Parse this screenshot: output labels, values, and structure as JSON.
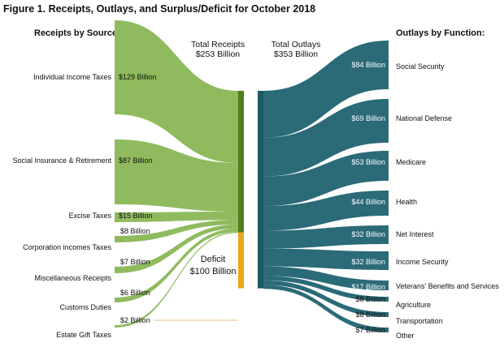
{
  "figure": {
    "title": "Figure 1. Receipts, Outlays, and Surplus/Deficit for October 2018",
    "receipts_heading": "Receipts by Source:",
    "outlays_heading": "Outlays by Function:",
    "total_receipts_label": "Total Receipts",
    "total_receipts_value": "$253 Billion",
    "total_outlays_label": "Total Outlays",
    "total_outlays_value": "$353 Billion",
    "deficit_label": "Deficit",
    "deficit_value": "$100 Billion"
  },
  "colors": {
    "receipts_band": "#8fbb5e",
    "receipts_bar": "#4e7f1c",
    "deficit_bar": "#e8a81a",
    "outlays_band": "#2b6b78",
    "outlays_bar": "#1e5a66",
    "deficit_line": "#e8c27a"
  },
  "chart_data": {
    "type": "sankey",
    "units": "Billion dollars",
    "receipts": [
      {
        "name": "Individual Income Taxes",
        "value": 129,
        "label": "$129 Billion"
      },
      {
        "name": "Social Insurance & Retirement",
        "value": 87,
        "label": "$87 Billion"
      },
      {
        "name": "Excise Taxes",
        "value": 15,
        "label": "$15 Billion"
      },
      {
        "name": "Corporation incomes Taxes",
        "value": 8,
        "label": "$8 Billion"
      },
      {
        "name": "Miscellaneous Receipts",
        "value": 7,
        "label": "$7 Billion"
      },
      {
        "name": "Customs Duties",
        "value": 6,
        "label": "$6 Billion"
      },
      {
        "name": "Estate Gift Taxes",
        "value": 2,
        "label": "$2 Billion"
      }
    ],
    "outlays": [
      {
        "name": "Social Security",
        "value": 84,
        "label": "$84 Billion"
      },
      {
        "name": "National Defense",
        "value": 69,
        "label": "$69 Billion"
      },
      {
        "name": "Medicare",
        "value": 53,
        "label": "$53 Billion"
      },
      {
        "name": "Health",
        "value": 44,
        "label": "$44 Billion"
      },
      {
        "name": "Net Interest",
        "value": 32,
        "label": "$32 Billion"
      },
      {
        "name": "Income Security",
        "value": 32,
        "label": "$32 Billion"
      },
      {
        "name": "Veterans' Benefits and Services",
        "value": 17,
        "label": "$17 Billion"
      },
      {
        "name": "Agriculture",
        "value": 8,
        "label": "$8 Billion"
      },
      {
        "name": "Transportation",
        "value": 8,
        "label": "$8 Billion"
      },
      {
        "name": "Other",
        "value": 7,
        "label": "$7 Billion"
      }
    ],
    "total_receipts": 253,
    "total_outlays": 353,
    "deficit": 100
  }
}
